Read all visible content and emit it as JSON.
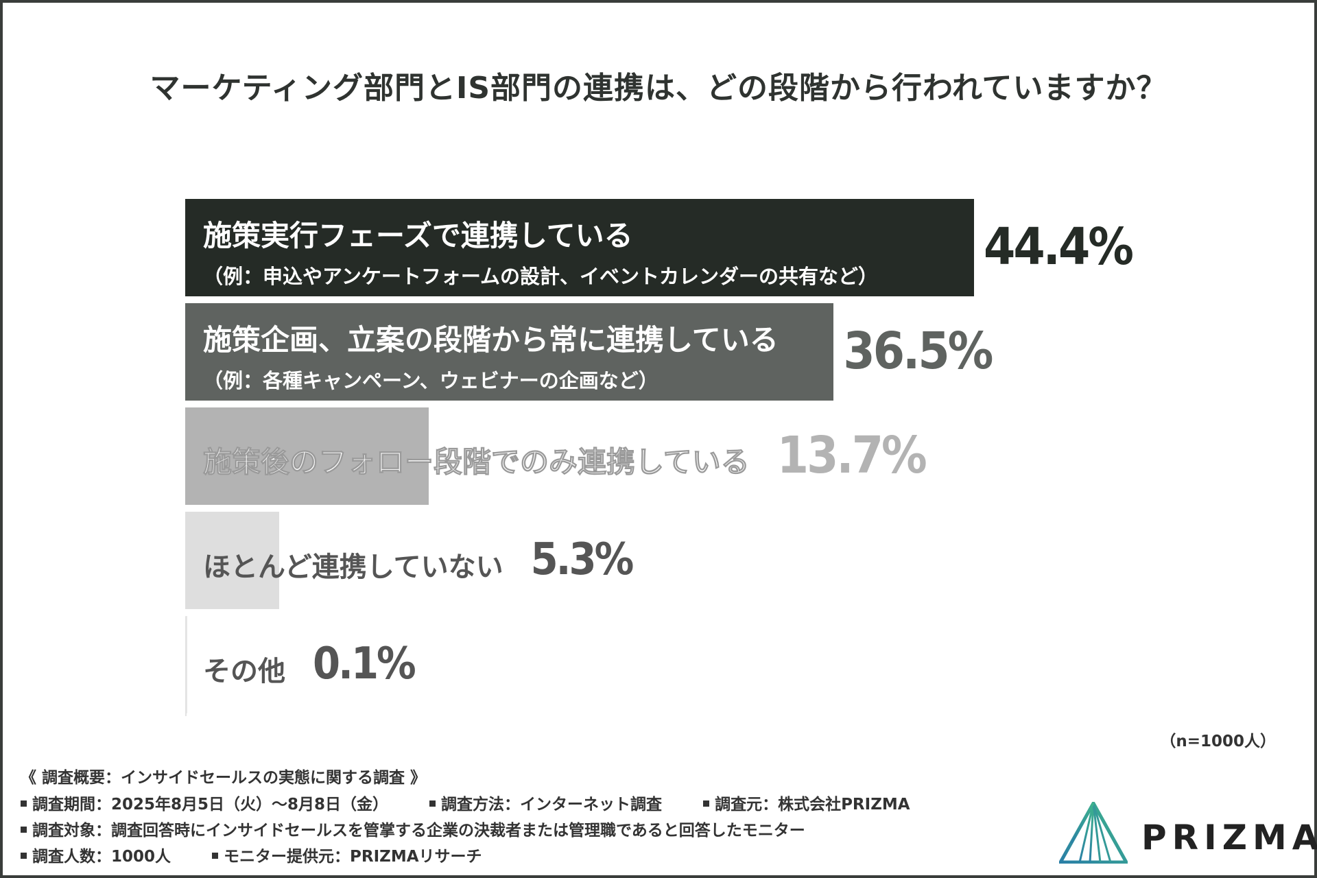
{
  "chart_data": {
    "type": "bar",
    "orientation": "horizontal",
    "title": "マーケティング部門とIS部門の連携は、どの段階から行われていますか？",
    "note": "（n=1000人）",
    "unit": "%",
    "xlim": [
      0,
      100
    ],
    "grid": false,
    "categories": [
      "施策実行フェーズで連携している",
      "施策企画、立案の段階から常に連携している",
      "施策後のフォロー段階でのみ連携している",
      "ほとんど連携していない",
      "その他"
    ],
    "sublabels": [
      "（例：申込やアンケートフォームの設計、イベントカレンダーの共有など）",
      "（例：各種キャンペーン、ウェビナーの企画など）",
      "",
      "",
      ""
    ],
    "values": [
      44.4,
      36.5,
      13.7,
      5.3,
      0.1
    ],
    "value_labels": [
      "44.4%",
      "36.5%",
      "13.7%",
      "5.3%",
      "0.1%"
    ],
    "colors": {
      "bars": [
        "#252b26",
        "#5f6360",
        "#b3b3b3",
        "#dedede",
        "#e8e8e8"
      ],
      "labels": [
        "#ffffff",
        "#ffffff",
        "#ffffff",
        "#555555",
        "#555555"
      ],
      "values": [
        "#252b26",
        "#5f6360",
        "#b3b3b3",
        "#555555",
        "#555555"
      ]
    }
  },
  "survey": {
    "heading": "《 調査概要：インサイドセールスの実態に関する調査 》",
    "period": "調査期間：2025年8月5日（火）〜8月8日（金）",
    "method": "調査方法：インターネット調査",
    "source": "調査元：株式会社PRIZMA",
    "target": "調査対象：調査回答時にインサイドセールスを管掌する企業の決裁者または管理職であると回答したモニター",
    "count": "調査人数：1000人",
    "panel": "モニター提供元：PRIZMAリサーチ"
  },
  "brand": {
    "name": "PRIZMA",
    "logo_colors": [
      "#2a7fa6",
      "#3fb58a"
    ]
  }
}
